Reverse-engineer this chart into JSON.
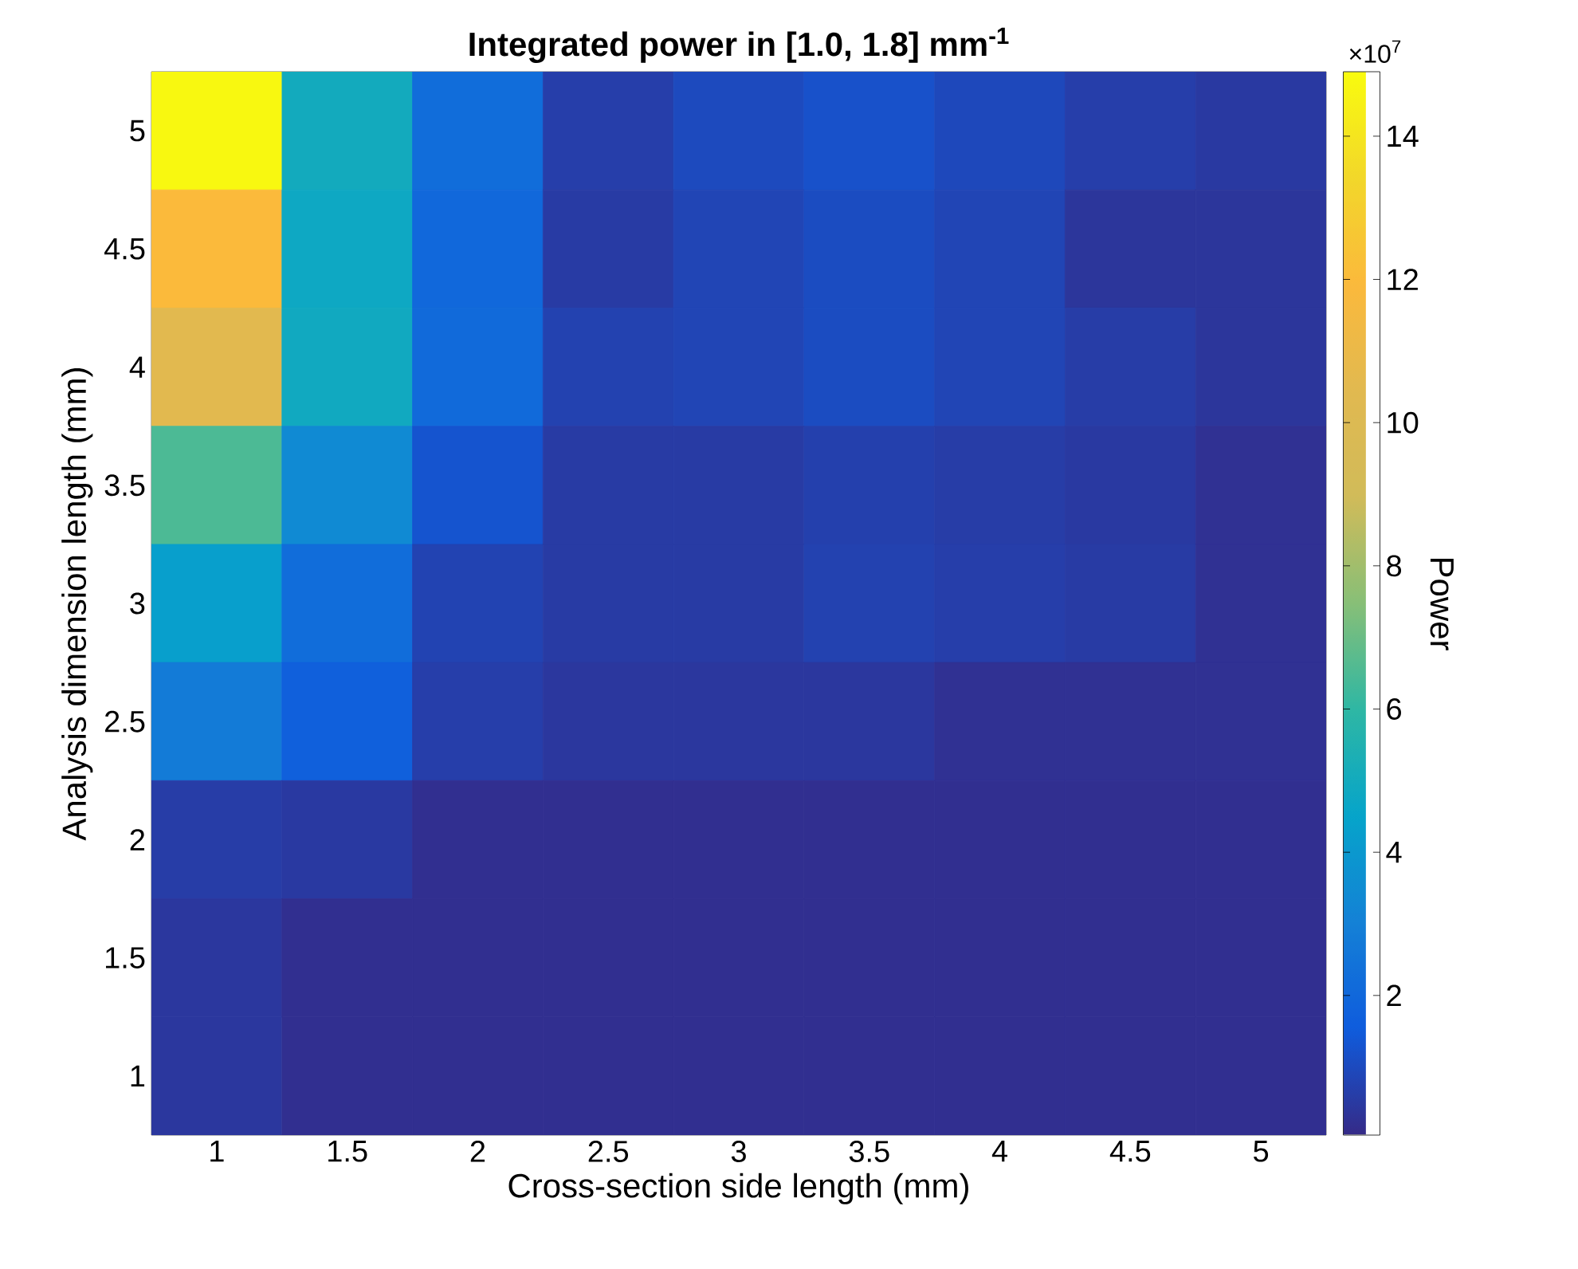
{
  "chart_data": {
    "type": "heatmap",
    "title": "Integrated power in [1.0, 1.8] mm$^{-1}$",
    "xlabel": "Cross-section side length (mm)",
    "ylabel": "Analysis dimension length (mm)",
    "clabel": "Power",
    "annotations": [
      "×10$^{7}$"
    ],
    "categories": [
      "1",
      "1.5",
      "2",
      "2.5",
      "3",
      "3.5",
      "4",
      "4.5",
      "5"
    ],
    "y_categories": [
      "5",
      "4.5",
      "4",
      "3.5",
      "3",
      "2.5",
      "2",
      "1.5",
      "1"
    ],
    "cells": [
      [
        14.8,
        5.0,
        2.2,
        0.65,
        1.0,
        1.2,
        0.95,
        0.65,
        0.5
      ],
      [
        12.0,
        4.8,
        2.0,
        0.55,
        0.85,
        1.05,
        0.85,
        0.4,
        0.4
      ],
      [
        10.5,
        4.9,
        2.1,
        0.75,
        0.85,
        1.05,
        0.85,
        0.6,
        0.4
      ],
      [
        6.5,
        3.4,
        1.3,
        0.55,
        0.55,
        0.7,
        0.6,
        0.5,
        0.25
      ],
      [
        4.3,
        2.2,
        0.8,
        0.55,
        0.55,
        0.75,
        0.65,
        0.55,
        0.25
      ],
      [
        2.8,
        1.7,
        0.65,
        0.45,
        0.45,
        0.45,
        0.25,
        0.25,
        0.25
      ],
      [
        0.6,
        0.5,
        0.2,
        0.2,
        0.2,
        0.2,
        0.2,
        0.2,
        0.2
      ],
      [
        0.45,
        0.2,
        0.2,
        0.2,
        0.2,
        0.2,
        0.2,
        0.2,
        0.2
      ],
      [
        0.45,
        0.2,
        0.2,
        0.2,
        0.2,
        0.2,
        0.2,
        0.2,
        0.2
      ]
    ],
    "clim": [
      0.05,
      14.9
    ],
    "cticks": [
      2,
      4,
      6,
      8,
      10,
      12,
      14
    ]
  }
}
